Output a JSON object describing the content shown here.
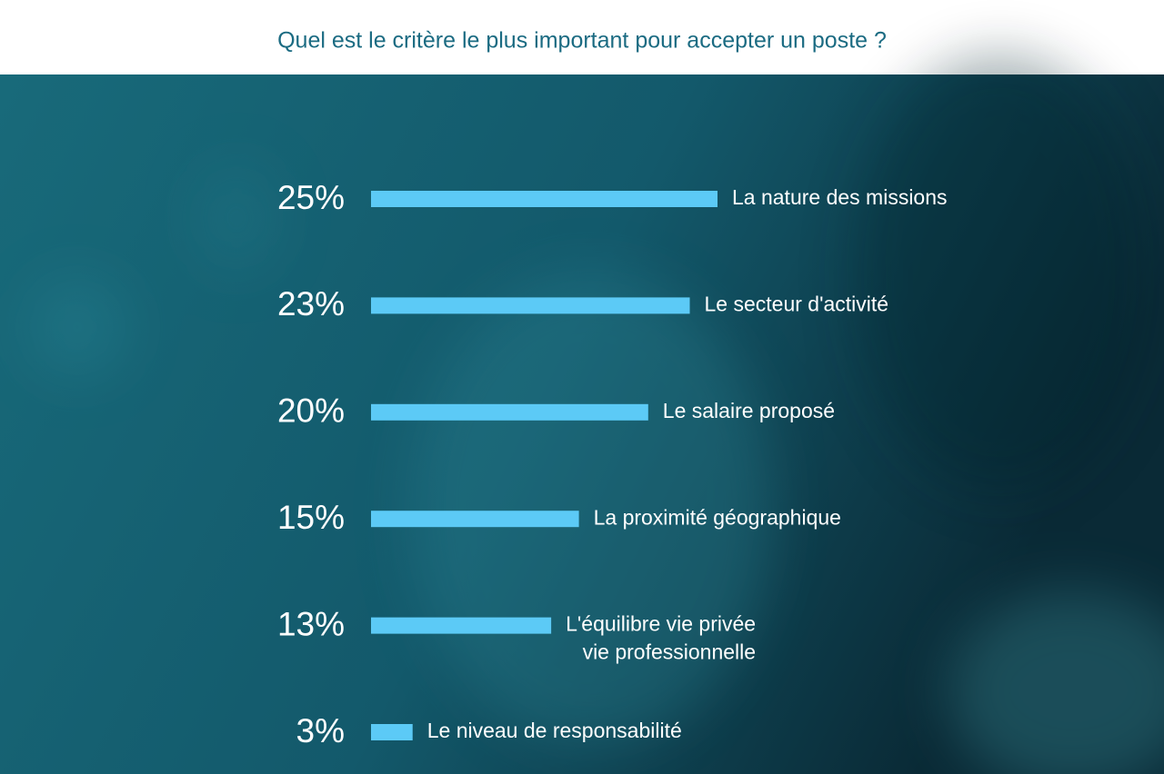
{
  "chart_data": {
    "type": "bar",
    "orientation": "horizontal",
    "title": "Quel est le critère le plus important pour accepter un poste ?",
    "categories": [
      "La nature des missions",
      "Le secteur d'activité",
      "Le salaire proposé",
      "La proximité géographique",
      "L'équilibre vie privée\nvie professionnelle",
      "Le niveau de responsabilité"
    ],
    "values": [
      25,
      23,
      20,
      15,
      13,
      3
    ],
    "value_labels": [
      "25%",
      "23%",
      "20%",
      "15%",
      "13%",
      "3%"
    ],
    "color": "#5ccaf6"
  }
}
